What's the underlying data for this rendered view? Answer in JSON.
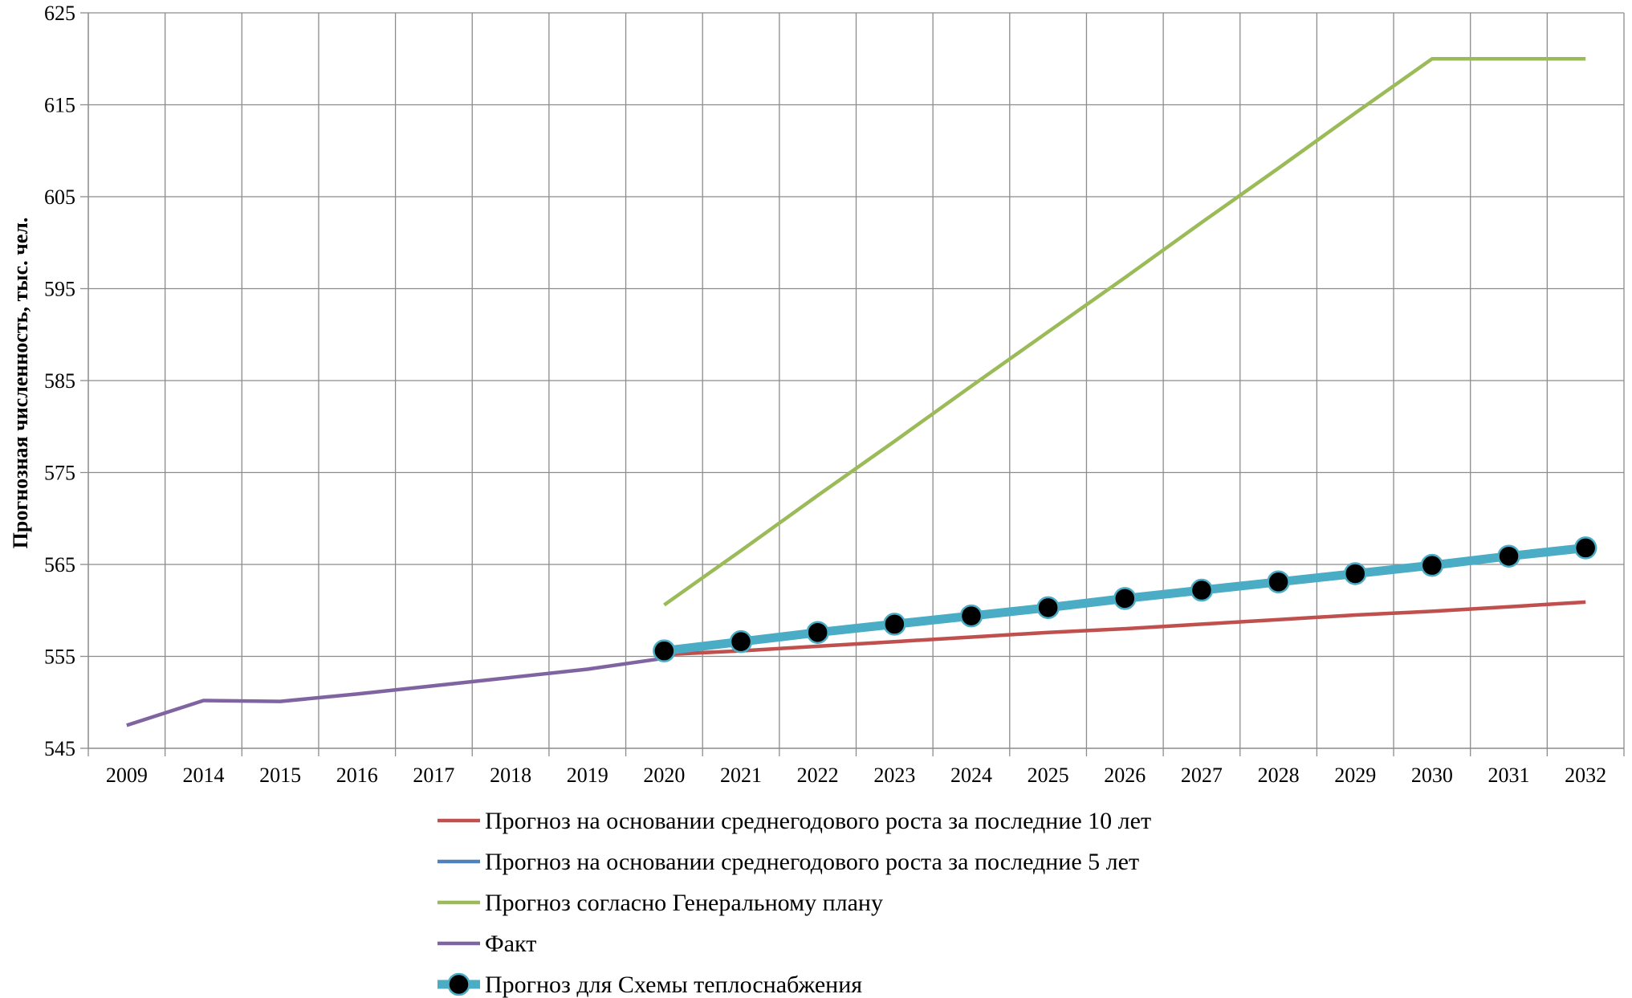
{
  "chart_data": {
    "type": "line",
    "title": "",
    "xlabel": "",
    "ylabel": "Прогнозная численность, тыс. чел.",
    "categories": [
      "2009",
      "2014",
      "2015",
      "2016",
      "2017",
      "2018",
      "2019",
      "2020",
      "2021",
      "2022",
      "2023",
      "2024",
      "2025",
      "2026",
      "2027",
      "2028",
      "2029",
      "2030",
      "2031",
      "2032"
    ],
    "ylim": [
      545,
      625
    ],
    "yticks": [
      545,
      555,
      565,
      575,
      585,
      595,
      605,
      615,
      625
    ],
    "grid": true,
    "legend_position": "bottom",
    "series": [
      {
        "name": "Прогноз на основании среднегодового роста за последние 10 лет",
        "color": "#c0504d",
        "markers": false,
        "values": [
          null,
          null,
          null,
          null,
          null,
          null,
          null,
          555.2,
          555.6,
          556.1,
          556.6,
          557.1,
          557.6,
          558.0,
          558.5,
          559.0,
          559.5,
          559.9,
          560.4,
          560.9
        ]
      },
      {
        "name": "Прогноз на основании среднегодового роста за последние 5 лет",
        "color": "#4f81bd",
        "markers": false,
        "values": [
          null,
          null,
          null,
          null,
          null,
          null,
          null,
          555.6,
          556.6,
          557.6,
          558.5,
          559.4,
          560.3,
          561.3,
          562.2,
          563.1,
          564.0,
          564.9,
          565.9,
          566.8
        ]
      },
      {
        "name": "Прогноз согласно Генеральному плану",
        "color": "#9bbb59",
        "markers": false,
        "values": [
          null,
          null,
          null,
          null,
          null,
          null,
          null,
          560.6,
          566.5,
          572.5,
          578.4,
          584.4,
          590.3,
          596.2,
          602.2,
          608.1,
          614.1,
          620.0,
          620.0,
          620.0
        ]
      },
      {
        "name": "Факт",
        "color": "#8064a2",
        "markers": false,
        "values": [
          547.5,
          550.2,
          550.1,
          550.9,
          551.8,
          552.7,
          553.6,
          554.8,
          null,
          null,
          null,
          null,
          null,
          null,
          null,
          null,
          null,
          null,
          null,
          null
        ]
      },
      {
        "name": "Прогноз для Схемы теплоснабжения",
        "color": "#4bacc6",
        "markers": true,
        "values": [
          null,
          null,
          null,
          null,
          null,
          null,
          null,
          555.6,
          556.6,
          557.6,
          558.5,
          559.4,
          560.3,
          561.3,
          562.2,
          563.1,
          564.0,
          564.9,
          565.9,
          566.8
        ]
      }
    ]
  }
}
